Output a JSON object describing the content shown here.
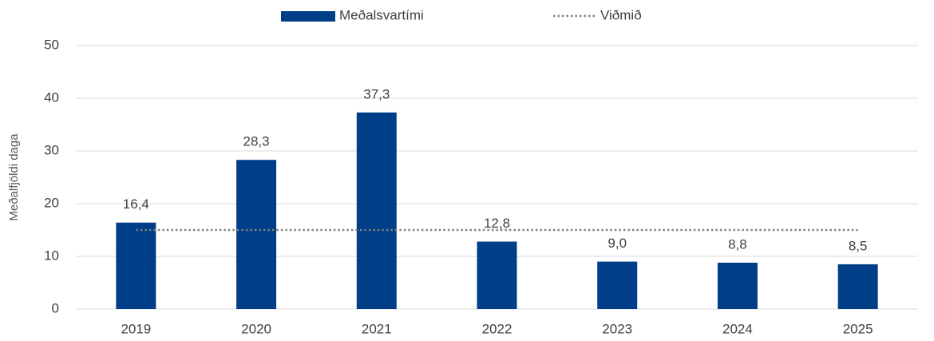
{
  "chart_data": {
    "type": "bar",
    "ylabel": "Meðalfjöldi daga",
    "categories": [
      "2019",
      "2020",
      "2021",
      "2022",
      "2023",
      "2024",
      "2025"
    ],
    "series": [
      {
        "name": "Meðalsvartími",
        "type": "bar",
        "color": "#003f87",
        "values": [
          16.4,
          28.3,
          37.3,
          12.8,
          9.0,
          8.8,
          8.5
        ],
        "value_labels": [
          "16,4",
          "28,3",
          "37,3",
          "12,8",
          "9,0",
          "8,8",
          "8,5"
        ]
      },
      {
        "name": "Viðmið",
        "type": "line",
        "color": "#808080",
        "dash": "dotted",
        "values": [
          15,
          15,
          15,
          15,
          15,
          15,
          15
        ]
      }
    ],
    "ylim": [
      0,
      50
    ],
    "yticks": [
      0,
      10,
      20,
      30,
      40,
      50
    ],
    "grid": true,
    "legend": "top"
  }
}
